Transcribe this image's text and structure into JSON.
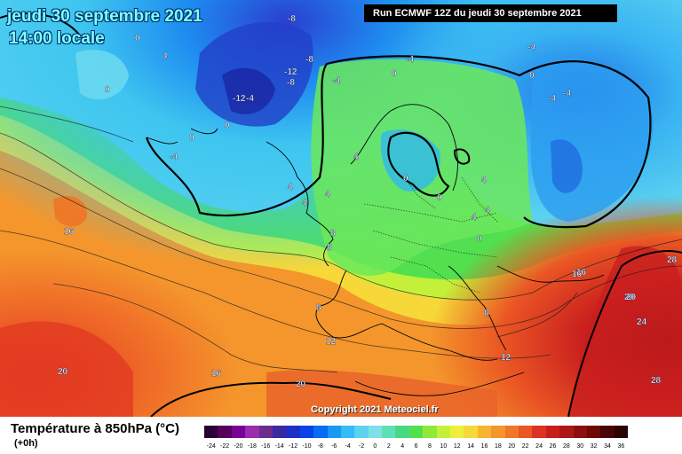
{
  "header": {
    "date": "jeudi 30 septembre 2021",
    "time": "14:00 locale",
    "run": "Run ECMWF 12Z du jeudi 30 septembre 2021"
  },
  "copyright": "Copyright 2021 Meteociel.fr",
  "legend": {
    "title": "Température à 850hPa (°C)",
    "subtitle": "(+0h)",
    "ticks": [
      "-24",
      "-22",
      "-20",
      "-18",
      "-16",
      "-14",
      "-12",
      "-10",
      "-8",
      "-6",
      "-4",
      "-2",
      "0",
      "2",
      "4",
      "6",
      "8",
      "10",
      "12",
      "14",
      "16",
      "18",
      "20",
      "22",
      "24",
      "26",
      "28",
      "30",
      "32",
      "34",
      "36"
    ],
    "colors": [
      "#2a0036",
      "#55005e",
      "#7a0096",
      "#9a2cae",
      "#6b2d8c",
      "#3a2aa0",
      "#1e2fc8",
      "#0b44e6",
      "#0a6cf2",
      "#1798f5",
      "#33bcf5",
      "#5cd2f0",
      "#7fe0e8",
      "#5ee0b4",
      "#48d884",
      "#52e04e",
      "#8fea38",
      "#c4f03a",
      "#ecf03a",
      "#f6d838",
      "#f6b432",
      "#f4962c",
      "#f07628",
      "#ea5624",
      "#dc3422",
      "#c81e1e",
      "#ac1616",
      "#8c0e10",
      "#6c080a",
      "#4a0406",
      "#2a0204"
    ]
  },
  "map_labels": [
    "-8",
    "0",
    "4",
    "-8",
    "-12",
    "-8",
    "0",
    "-12",
    "-4",
    "0",
    "-4",
    "0",
    "-4",
    "-4",
    "-4",
    "0",
    "-4",
    "-4",
    "0",
    "4",
    "4",
    "4",
    "4",
    "0",
    "0",
    "4",
    "4",
    "0",
    "4",
    "16",
    "16",
    "8",
    "8",
    "8",
    "12",
    "12",
    "16",
    "20",
    "24",
    "20",
    "28",
    "28",
    "16",
    "20",
    "20",
    "8"
  ]
}
